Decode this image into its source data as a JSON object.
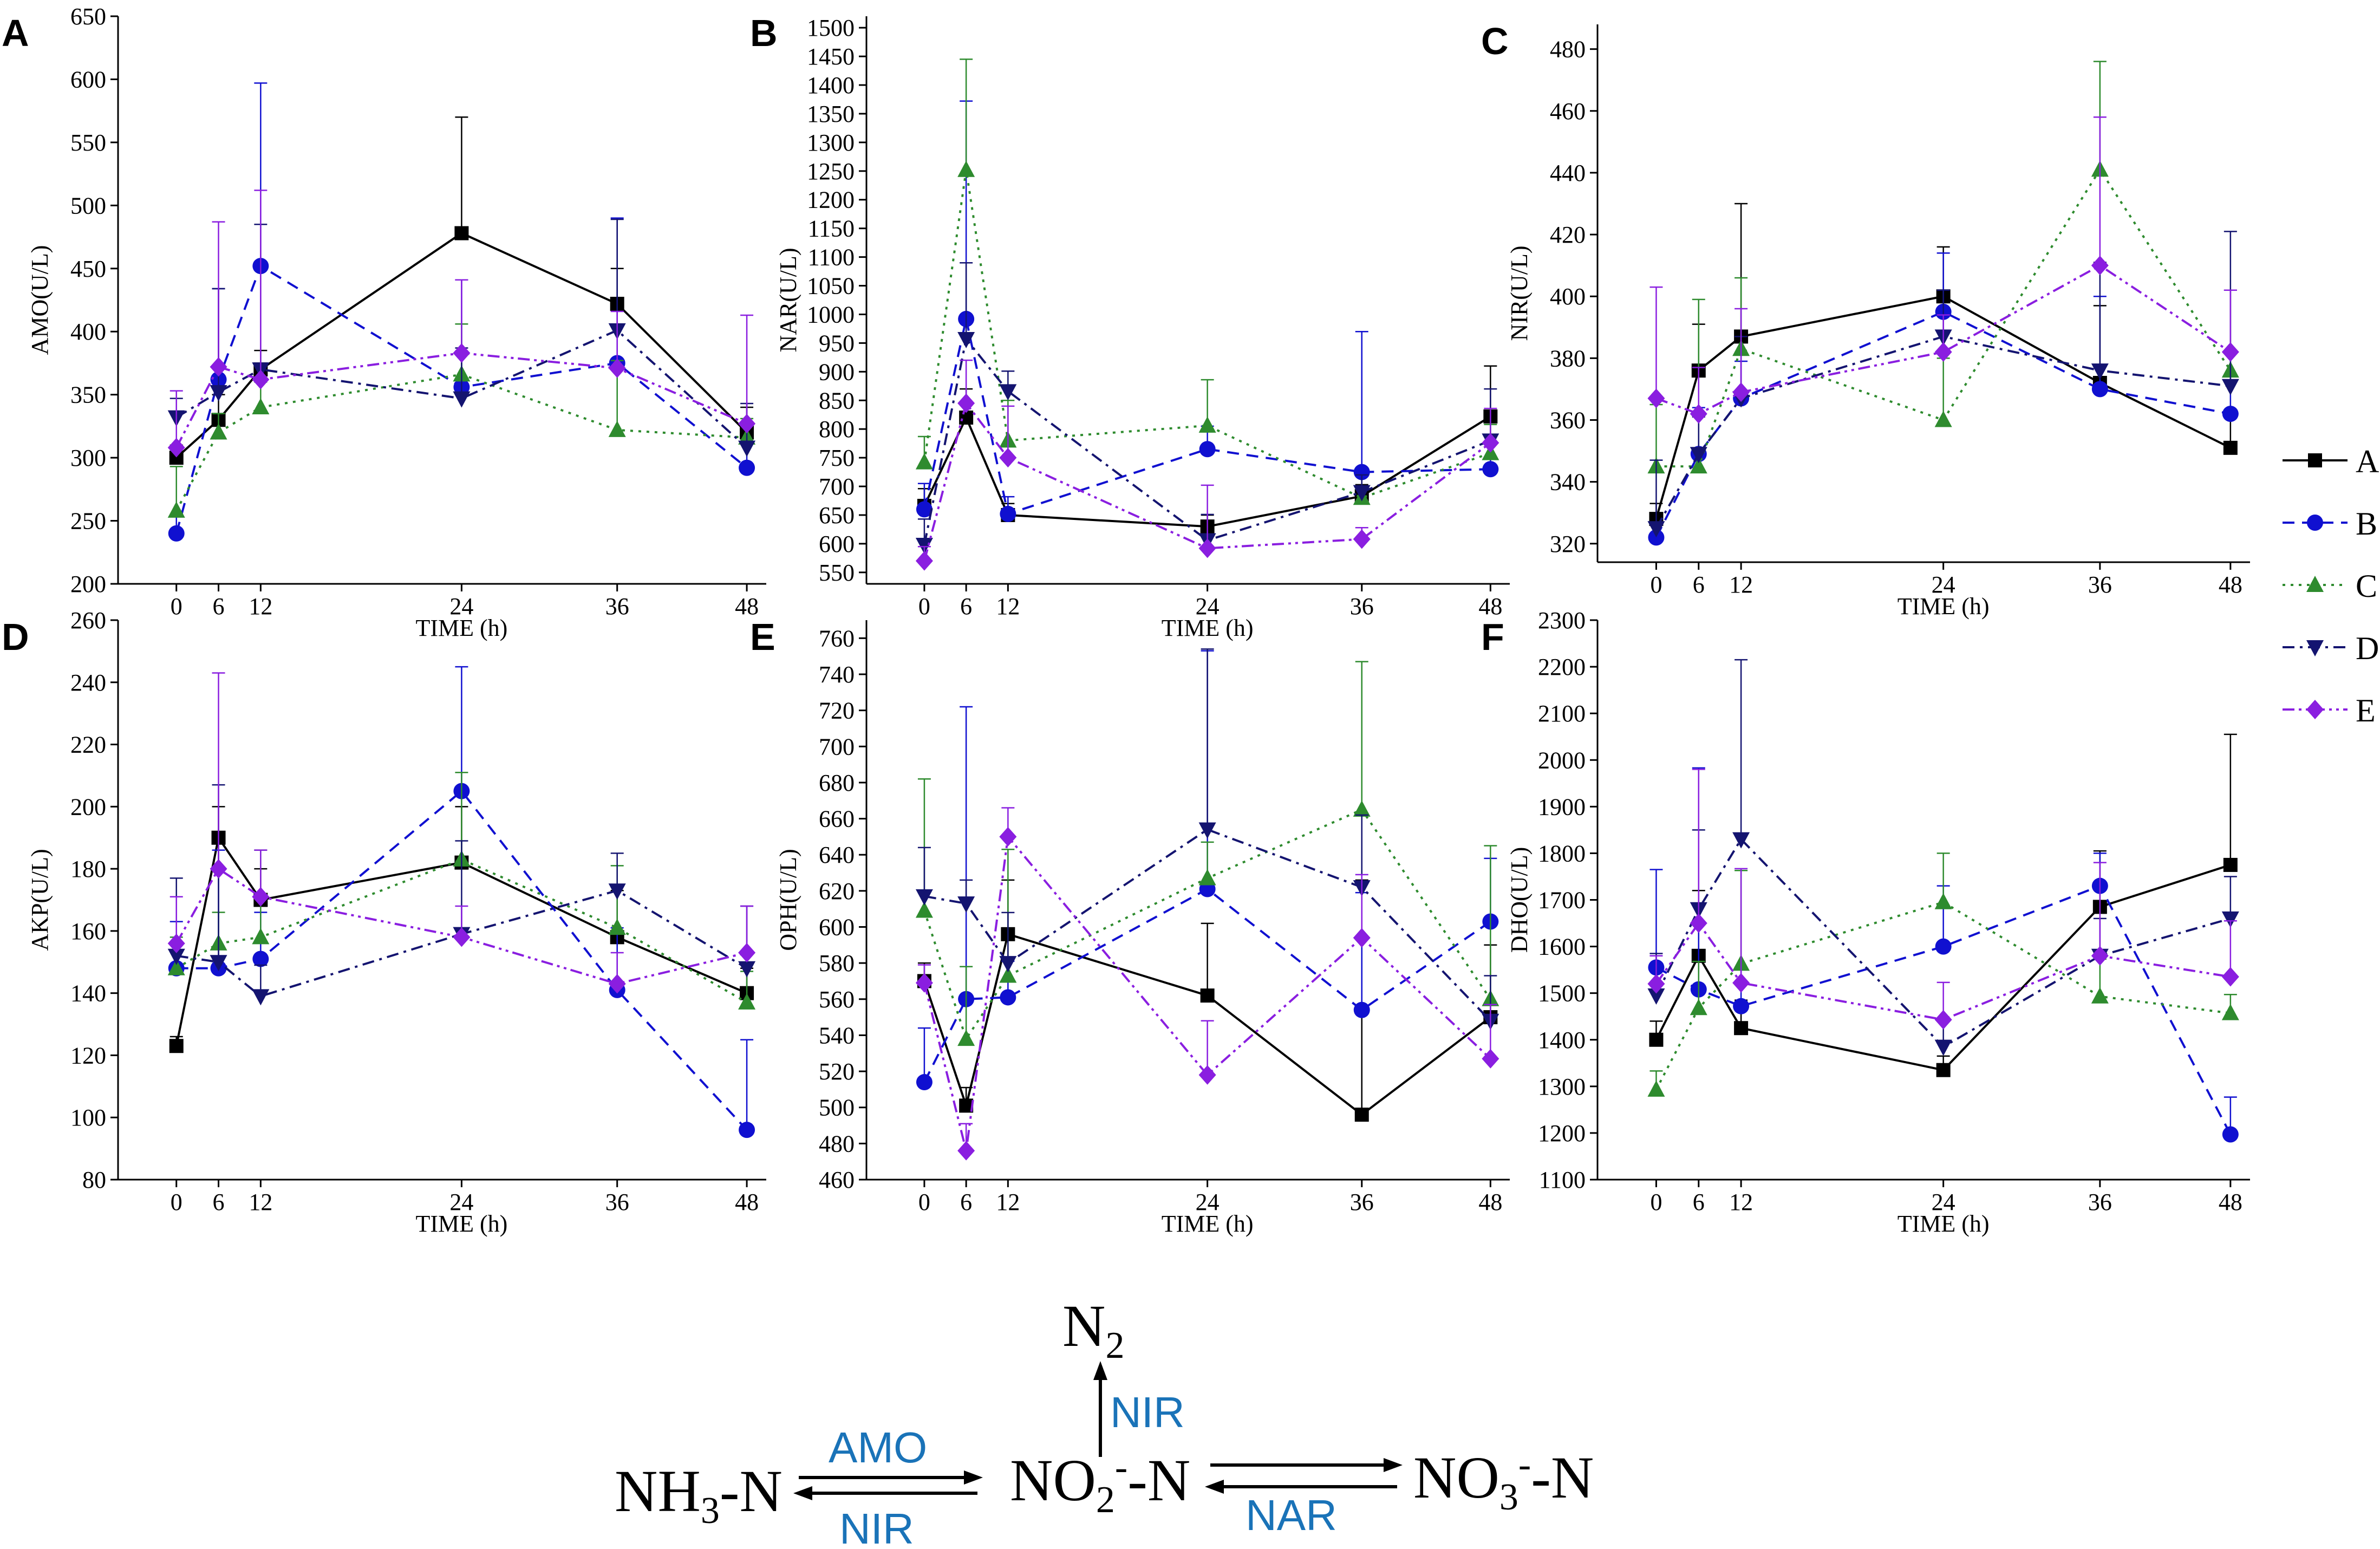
{
  "colors": {
    "A": "#000000",
    "B": "#1010d0",
    "C": "#2e8b2e",
    "D": "#141470",
    "E": "#8a1ee0",
    "enzyme": "#1a73b8"
  },
  "legend": [
    {
      "key": "A",
      "label": "A",
      "marker": "square",
      "dash": "solid"
    },
    {
      "key": "B",
      "label": "B",
      "marker": "circle",
      "dash": "dash"
    },
    {
      "key": "C",
      "label": "C",
      "marker": "triangle-up",
      "dash": "dot"
    },
    {
      "key": "D",
      "label": "D",
      "marker": "triangle-down",
      "dash": "dashdot"
    },
    {
      "key": "E",
      "label": "E",
      "marker": "diamond",
      "dash": "dashdotdot"
    }
  ],
  "chart_data": [
    {
      "panel": "A",
      "type": "line",
      "ylabel": "AMO(U/L)",
      "xlabel": "TIME (h)",
      "x": [
        0,
        6,
        12,
        24,
        36,
        48
      ],
      "xticks": [
        0,
        6,
        12,
        24,
        36,
        48
      ],
      "ylim": [
        200,
        650
      ],
      "yticks": [
        200,
        250,
        300,
        350,
        400,
        450,
        500,
        550,
        600,
        650
      ],
      "series": [
        {
          "name": "A",
          "values": [
            300,
            330,
            370,
            478,
            422,
            320
          ],
          "errors": [
            10,
            20,
            15,
            92,
            28,
            20
          ]
        },
        {
          "name": "B",
          "values": [
            240,
            362,
            452,
            356,
            375,
            292
          ],
          "errors": [
            15,
            72,
            145,
            85,
            115,
            20
          ]
        },
        {
          "name": "C",
          "values": [
            258,
            320,
            340,
            366,
            322,
            316
          ],
          "errors": [
            35,
            15,
            20,
            40,
            55,
            15
          ]
        },
        {
          "name": "D",
          "values": [
            332,
            352,
            370,
            347,
            401,
            308
          ],
          "errors": [
            15,
            82,
            115,
            40,
            88,
            35
          ]
        },
        {
          "name": "E",
          "values": [
            308,
            372,
            362,
            383,
            371,
            327
          ],
          "errors": [
            45,
            115,
            150,
            58,
            45,
            86
          ]
        }
      ]
    },
    {
      "panel": "B",
      "type": "line",
      "ylabel": "NAR(U/L)",
      "xlabel": "TIME (h)",
      "x": [
        0,
        6,
        12,
        24,
        36,
        48
      ],
      "xticks": [
        0,
        6,
        12,
        24,
        36,
        48
      ],
      "ylim": [
        530,
        1520
      ],
      "yticks": [
        550,
        600,
        650,
        700,
        750,
        800,
        850,
        900,
        950,
        1000,
        1050,
        1100,
        1150,
        1200,
        1250,
        1300,
        1350,
        1400,
        1450,
        1500
      ],
      "series": [
        {
          "name": "A",
          "values": [
            666,
            820,
            650,
            630,
            683,
            822
          ],
          "errors": [
            30,
            50,
            20,
            20,
            20,
            88
          ]
        },
        {
          "name": "B",
          "values": [
            660,
            992,
            652,
            765,
            725,
            730
          ],
          "errors": [
            45,
            380,
            30,
            40,
            245,
            60
          ]
        },
        {
          "name": "C",
          "values": [
            742,
            1252,
            780,
            806,
            680,
            758
          ],
          "errors": [
            45,
            193,
            70,
            80,
            15,
            50
          ]
        },
        {
          "name": "D",
          "values": [
            598,
            957,
            866,
            606,
            690,
            780
          ],
          "errors": [
            45,
            133,
            35,
            45,
            30,
            90
          ]
        },
        {
          "name": "E",
          "values": [
            570,
            845,
            750,
            592,
            608,
            776
          ],
          "errors": [
            25,
            75,
            90,
            110,
            20,
            60
          ]
        }
      ]
    },
    {
      "panel": "C",
      "type": "line",
      "ylabel": "NIR(U/L)",
      "xlabel": "TIME (h)",
      "x": [
        0,
        6,
        12,
        24,
        36,
        48
      ],
      "xticks": [
        0,
        6,
        12,
        24,
        36,
        48
      ],
      "ylim": [
        314,
        488
      ],
      "yticks": [
        320,
        340,
        360,
        380,
        400,
        420,
        440,
        460,
        480
      ],
      "series": [
        {
          "name": "A",
          "values": [
            328,
            376,
            387,
            400,
            372,
            351
          ],
          "errors": [
            5,
            15,
            43,
            16,
            25,
            10
          ]
        },
        {
          "name": "B",
          "values": [
            322,
            349,
            367,
            395,
            370,
            362
          ],
          "errors": [
            5,
            15,
            12,
            19,
            30,
            20
          ]
        },
        {
          "name": "C",
          "values": [
            345,
            345,
            383,
            360,
            441,
            376
          ],
          "errors": [
            20,
            54,
            23,
            20,
            35,
            26
          ]
        },
        {
          "name": "D",
          "values": [
            325,
            349,
            367,
            387,
            376,
            371
          ],
          "errors": [
            22,
            12,
            20,
            15,
            35,
            50
          ]
        },
        {
          "name": "E",
          "values": [
            367,
            362,
            369,
            382,
            410,
            382
          ],
          "errors": [
            36,
            15,
            27,
            12,
            48,
            20
          ]
        }
      ]
    },
    {
      "panel": "D",
      "type": "line",
      "ylabel": "AKP(U/L)",
      "xlabel": "TIME (h)",
      "x": [
        0,
        6,
        12,
        24,
        36,
        48
      ],
      "xticks": [
        0,
        6,
        12,
        24,
        36,
        48
      ],
      "ylim": [
        80,
        260
      ],
      "yticks": [
        80,
        100,
        120,
        140,
        160,
        180,
        200,
        220,
        240,
        260
      ],
      "series": [
        {
          "name": "A",
          "values": [
            123,
            190,
            170,
            182,
            158,
            140
          ],
          "errors": [
            3,
            10,
            10,
            18,
            15,
            8
          ]
        },
        {
          "name": "B",
          "values": [
            148,
            148,
            151,
            205,
            141,
            96
          ],
          "errors": [
            15,
            38,
            15,
            40,
            20,
            29
          ]
        },
        {
          "name": "C",
          "values": [
            148,
            156,
            158,
            183,
            161,
            137
          ],
          "errors": [
            10,
            10,
            28,
            28,
            20,
            10
          ]
        },
        {
          "name": "D",
          "values": [
            152,
            150,
            139,
            159,
            173,
            148
          ],
          "errors": [
            25,
            57,
            10,
            30,
            12,
            20
          ]
        },
        {
          "name": "E",
          "values": [
            156,
            180,
            171,
            158,
            143,
            153
          ],
          "errors": [
            15,
            63,
            15,
            10,
            10,
            15
          ]
        }
      ]
    },
    {
      "panel": "E",
      "type": "line",
      "ylabel": "OPH(U/L)",
      "xlabel": "TIME (h)",
      "x": [
        0,
        6,
        12,
        24,
        36,
        48
      ],
      "xticks": [
        0,
        6,
        12,
        24,
        36,
        48
      ],
      "ylim": [
        460,
        770
      ],
      "yticks": [
        460,
        480,
        500,
        520,
        540,
        560,
        580,
        600,
        620,
        640,
        660,
        680,
        700,
        720,
        740,
        760
      ],
      "series": [
        {
          "name": "A",
          "values": [
            570,
            501,
            596,
            562,
            496,
            550
          ],
          "errors": [
            10,
            10,
            30,
            40,
            130,
            40
          ]
        },
        {
          "name": "B",
          "values": [
            514,
            560,
            561,
            621,
            554,
            603
          ],
          "errors": [
            30,
            162,
            20,
            132,
            65,
            35
          ]
        },
        {
          "name": "C",
          "values": [
            609,
            538,
            573,
            627,
            665,
            560
          ],
          "errors": [
            73,
            40,
            70,
            20,
            82,
            85
          ]
        },
        {
          "name": "D",
          "values": [
            617,
            613,
            580,
            654,
            622,
            548
          ],
          "errors": [
            27,
            13,
            28,
            100,
            40,
            25
          ]
        },
        {
          "name": "E",
          "values": [
            569,
            476,
            650,
            518,
            594,
            527
          ],
          "errors": [
            10,
            15,
            16,
            30,
            35,
            30
          ]
        }
      ]
    },
    {
      "panel": "F",
      "type": "line",
      "ylabel": "DHO(U/L)",
      "xlabel": "TIME (h)",
      "x": [
        0,
        6,
        12,
        24,
        36,
        48
      ],
      "xticks": [
        0,
        6,
        12,
        24,
        36,
        48
      ],
      "ylim": [
        1100,
        2300
      ],
      "yticks": [
        1100,
        1200,
        1300,
        1400,
        1500,
        1600,
        1700,
        1800,
        1900,
        2000,
        2100,
        2200,
        2300
      ],
      "series": [
        {
          "name": "A",
          "values": [
            1400,
            1580,
            1425,
            1335,
            1685,
            1775
          ],
          "errors": [
            40,
            140,
            60,
            30,
            120,
            280
          ]
        },
        {
          "name": "B",
          "values": [
            1555,
            1508,
            1472,
            1600,
            1730,
            1197
          ],
          "errors": [
            210,
            475,
            80,
            130,
            70,
            80
          ]
        },
        {
          "name": "C",
          "values": [
            1293,
            1468,
            1563,
            1695,
            1493,
            1457
          ],
          "errors": [
            40,
            100,
            200,
            105,
            80,
            40
          ]
        },
        {
          "name": "D",
          "values": [
            1495,
            1680,
            1830,
            1385,
            1580,
            1660
          ],
          "errors": [
            90,
            170,
            385,
            60,
            80,
            90
          ]
        },
        {
          "name": "E",
          "values": [
            1520,
            1650,
            1522,
            1443,
            1580,
            1535
          ],
          "errors": [
            60,
            330,
            245,
            80,
            200,
            120
          ]
        }
      ]
    }
  ],
  "diagram": {
    "nh3_main": "NH",
    "nh3_sub": "3",
    "nh3_tail": "-N",
    "no2_main": "NO",
    "no2_sub": "2",
    "no2_sup": "-",
    "no2_tail": "-N",
    "no3_main": "NO",
    "no3_sub": "3",
    "no3_sup": "-",
    "no3_tail": "-N",
    "n2_main": "N",
    "n2_sub": "2",
    "amo_label": "AMO",
    "nir_label_left": "NIR",
    "nir_label_up": "NIR",
    "nar_label": "NAR"
  }
}
